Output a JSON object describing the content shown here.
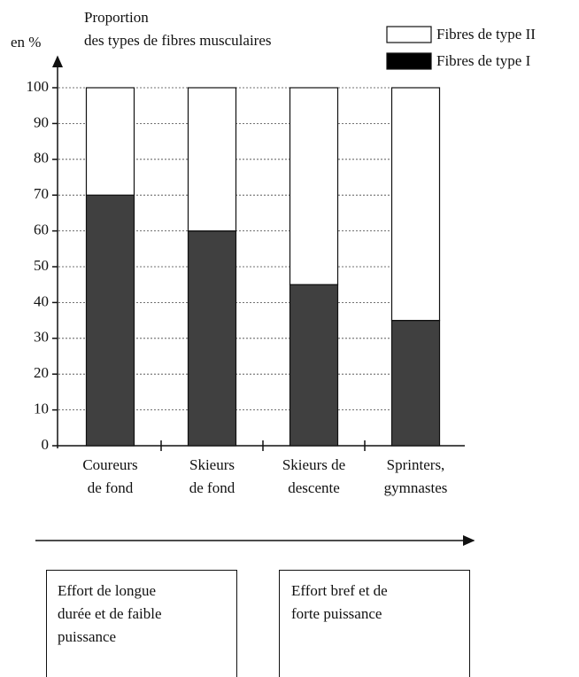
{
  "chart_data": {
    "type": "stacked_bar",
    "title": "Proportion\ndes types de fibres musculaires",
    "y_label": "en %",
    "categories": [
      "Coureurs\nde fond",
      "Skieurs\nde fond",
      "Skieurs de\ndescente",
      "Sprinters,\ngymnastes"
    ],
    "series": [
      {
        "name": "Fibres de type I",
        "color": "#404040",
        "values": [
          70,
          60,
          45,
          35
        ]
      },
      {
        "name": "Fibres de type II",
        "color": "#ffffff",
        "values": [
          30,
          40,
          55,
          65
        ]
      }
    ],
    "ylim": [
      0,
      100
    ],
    "yticks": [
      0,
      10,
      20,
      30,
      40,
      50,
      60,
      70,
      80,
      90,
      100
    ],
    "grid": true,
    "legend": "top-right",
    "annotations": [
      "Effort de longue\ndurée et de faible\npuissance",
      "Effort bref et de\nforte puissance"
    ]
  }
}
